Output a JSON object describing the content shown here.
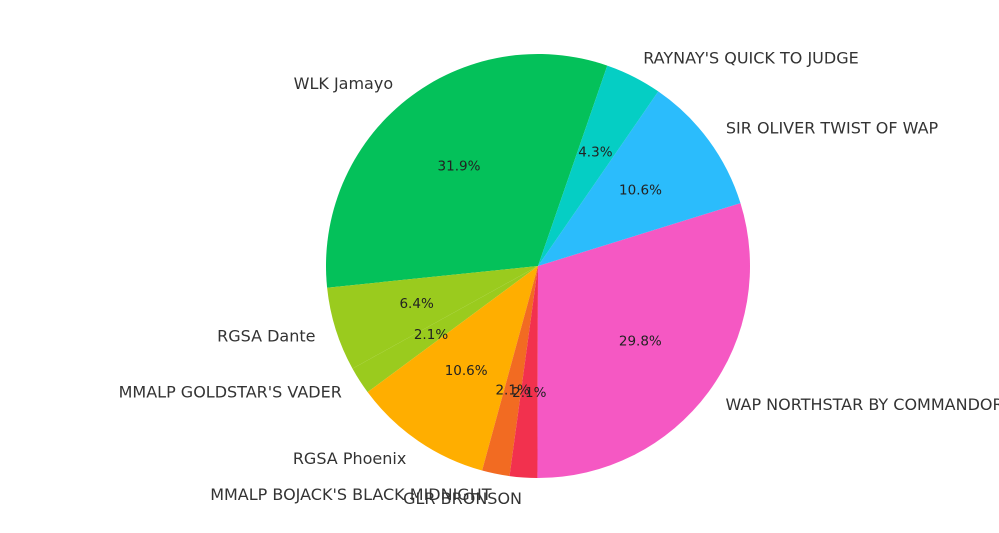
{
  "chart_data": {
    "type": "pie",
    "title": "",
    "start_angle_deg": 70.93,
    "direction": "counterclockwise",
    "slices": [
      {
        "label": "WLK Jamayo",
        "value": 31.9,
        "pct_text": "31.9%",
        "color": "#04C15A"
      },
      {
        "label": "RGSA Dante",
        "value": 6.4,
        "pct_text": "6.4%",
        "color": "#9ACB1E"
      },
      {
        "label": "MMALP GOLDSTAR'S VADER",
        "value": 2.1,
        "pct_text": "2.1%",
        "color": "#9ACB1E"
      },
      {
        "label": "RGSA Phoenix",
        "value": 10.6,
        "pct_text": "10.6%",
        "color": "#FFAE00"
      },
      {
        "label": "MMALP BOJACK'S BLACK MIDNIGHT",
        "value": 2.1,
        "pct_text": "2.1%",
        "color": "#F26B22"
      },
      {
        "label": "GLR BRONSON",
        "value": 2.1,
        "pct_text": "2.1%",
        "color": "#F2314E"
      },
      {
        "label": "WAP NORTHSTAR BY COMMANDOR",
        "value": 29.8,
        "pct_text": "29.8%",
        "color": "#F558C3"
      },
      {
        "label": "SIR OLIVER TWIST OF WAP",
        "value": 10.6,
        "pct_text": "10.6%",
        "color": "#2BBCFC"
      },
      {
        "label": "RAYNAY'S QUICK TO JUDGE",
        "value": 4.3,
        "pct_text": "4.3%",
        "color": "#05CEC4"
      }
    ]
  }
}
